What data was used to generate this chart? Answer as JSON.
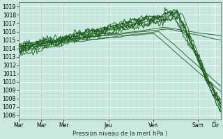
{
  "xlabel": "Pression niveau de la mer( hPa )",
  "bg_color": "#c8e8e0",
  "grid_color": "#b0d8d0",
  "line_color": "#1a5c1a",
  "ylim": [
    1005.5,
    1019.5
  ],
  "yticks": [
    1006,
    1007,
    1008,
    1009,
    1010,
    1011,
    1012,
    1013,
    1014,
    1015,
    1016,
    1017,
    1018,
    1019
  ],
  "xtick_positions": [
    0,
    24,
    48,
    96,
    144,
    192,
    210
  ],
  "xtick_labels": [
    "Mar",
    "Mar",
    "Mer",
    "Jeu",
    "Ven",
    "Sam",
    "Dir"
  ],
  "x_vlines": [
    24,
    48,
    96,
    144,
    192
  ],
  "xlim": [
    0,
    216
  ],
  "num_points": 200
}
